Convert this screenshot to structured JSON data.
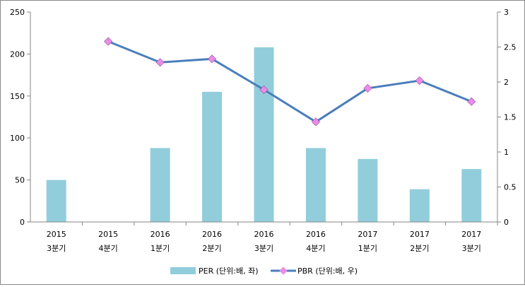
{
  "chart_data": {
    "type": "bar",
    "categories": [
      [
        "2015",
        "3분기"
      ],
      [
        "2015",
        "4분기"
      ],
      [
        "2016",
        "1분기"
      ],
      [
        "2016",
        "2분기"
      ],
      [
        "2016",
        "3분기"
      ],
      [
        "2016",
        "4분기"
      ],
      [
        "2017",
        "1분기"
      ],
      [
        "2017",
        "2분기"
      ],
      [
        "2017",
        "3분기"
      ]
    ],
    "series": [
      {
        "name": "PER (단위:배, 좌)",
        "type": "bar",
        "axis": "left",
        "color": "#92CDDC",
        "values": [
          50,
          null,
          88,
          155,
          208,
          88,
          75,
          39,
          63
        ]
      },
      {
        "name": "PBR (단위:배, 우)",
        "type": "line",
        "axis": "right",
        "color": "#4A7EBB",
        "marker_color": "#E88CE8",
        "values": [
          null,
          2.58,
          2.28,
          2.33,
          1.89,
          1.43,
          1.91,
          2.02,
          1.72
        ]
      }
    ],
    "y_left": {
      "range": [
        0,
        250
      ],
      "ticks": [
        0,
        50,
        100,
        150,
        200,
        250
      ]
    },
    "y_right": {
      "range": [
        0,
        3
      ],
      "ticks": [
        "0",
        "0.5",
        "1",
        "1.5",
        "2",
        "2.5",
        "3"
      ]
    },
    "grid": false,
    "legend": "bottom"
  }
}
